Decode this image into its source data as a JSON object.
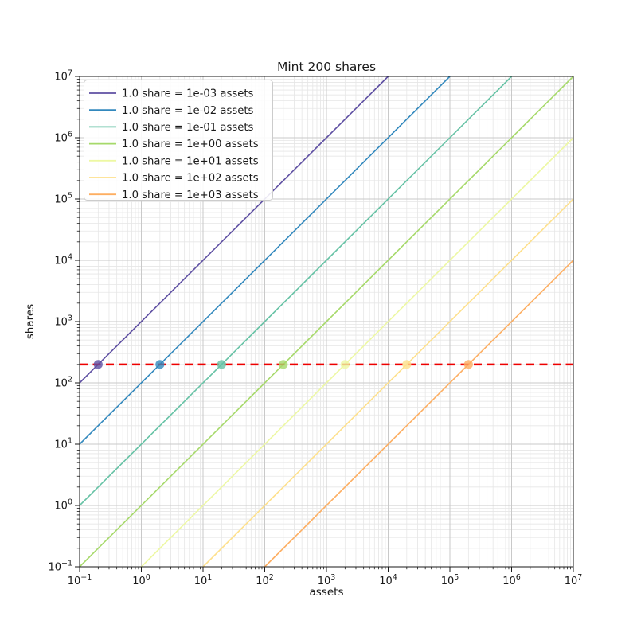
{
  "chart_data": {
    "type": "line",
    "title": "Mint 200 shares",
    "xlabel": "assets",
    "ylabel": "shares",
    "x_scale": "log",
    "y_scale": "log",
    "xlim": [
      0.1,
      10000000
    ],
    "ylim": [
      0.1,
      10000000
    ],
    "tick_base": "10",
    "x_tick_exponents": [
      -1,
      0,
      1,
      2,
      3,
      4,
      5,
      6,
      7
    ],
    "y_tick_exponents": [
      -1,
      0,
      1,
      2,
      3,
      4,
      5,
      6,
      7
    ],
    "grid": {
      "major": true,
      "minor": true,
      "major_color": "#c9c9c9",
      "minor_color": "#e6e6e6"
    },
    "legend": {
      "position": "upper left",
      "border_color": "#cccccc",
      "background_color": "#ffffff"
    },
    "series": [
      {
        "name": "1.0 share = 1e-03 assets",
        "assets_per_share": 0.001,
        "color": "#5e4fa2",
        "marker": {
          "x": 0.2,
          "y": 200
        }
      },
      {
        "name": "1.0 share = 1e-02 assets",
        "assets_per_share": 0.01,
        "color": "#3288bd",
        "marker": {
          "x": 2,
          "y": 200
        }
      },
      {
        "name": "1.0 share = 1e-01 assets",
        "assets_per_share": 0.1,
        "color": "#66c2a5",
        "marker": {
          "x": 20,
          "y": 200
        }
      },
      {
        "name": "1.0 share = 1e+00 assets",
        "assets_per_share": 1,
        "color": "#a6d96a",
        "marker": {
          "x": 200,
          "y": 200
        }
      },
      {
        "name": "1.0 share = 1e+01 assets",
        "assets_per_share": 10,
        "color": "#edf8a3",
        "marker": {
          "x": 2000,
          "y": 200
        }
      },
      {
        "name": "1.0 share = 1e+02 assets",
        "assets_per_share": 100,
        "color": "#fee08b",
        "marker": {
          "x": 20000,
          "y": 200
        }
      },
      {
        "name": "1.0 share = 1e+03 assets",
        "assets_per_share": 1000,
        "color": "#fdae61",
        "marker": {
          "x": 200000,
          "y": 200
        }
      }
    ],
    "reference_line": {
      "y": 200,
      "color": "#ee0000",
      "linestyle": "dashed"
    }
  }
}
